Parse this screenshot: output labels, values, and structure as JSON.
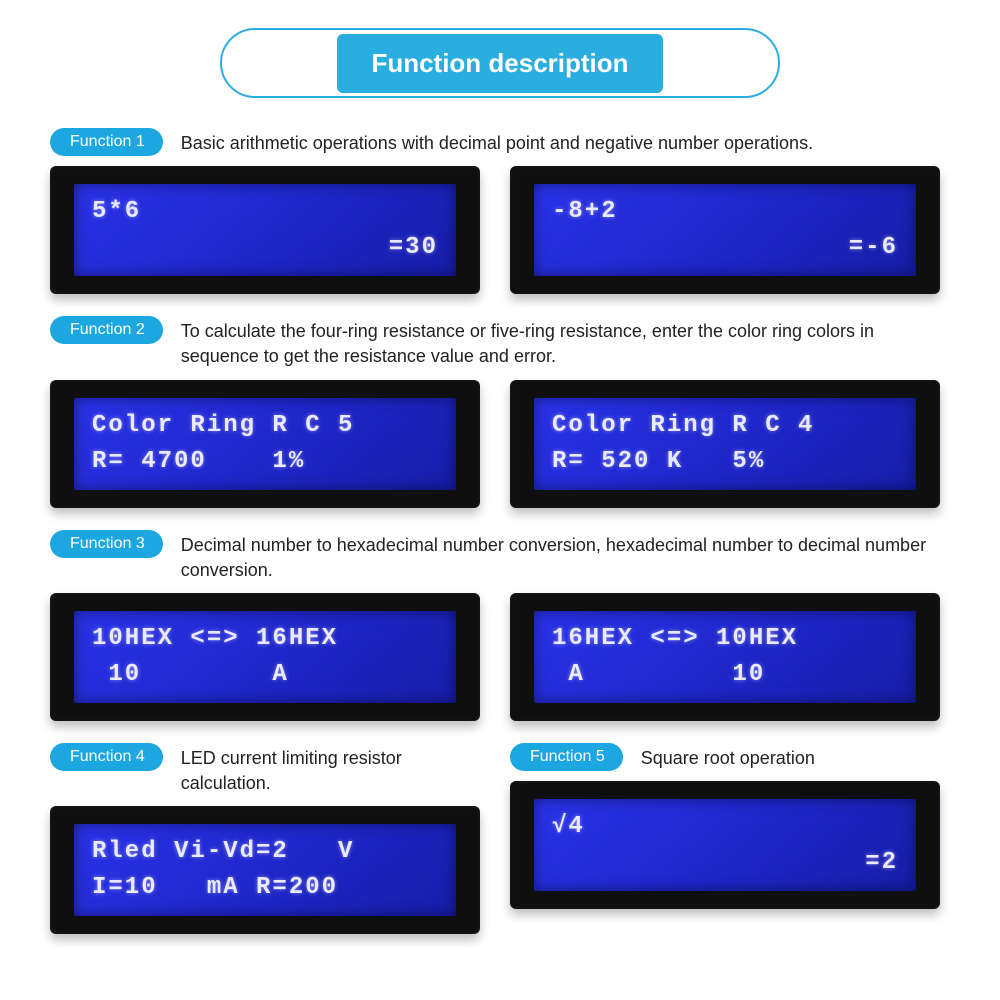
{
  "title": "Function description",
  "colors": {
    "accent": "#2aaee0",
    "lcd_bg_dark": "#0f0f0f",
    "lcd_screen_top": "#2a33e9",
    "lcd_screen_bottom": "#171da6",
    "lcd_text": "#e9e9ff",
    "body_text": "#222222"
  },
  "f1": {
    "tag": "Function 1",
    "desc": "Basic arithmetic operations with decimal point and negative number operations.",
    "lcdA": {
      "line1": "5*6",
      "line2": "=30"
    },
    "lcdB": {
      "line1": "-8+2",
      "line2": "=-6"
    }
  },
  "f2": {
    "tag": "Function 2",
    "desc": "To calculate the four-ring resistance or five-ring resistance, enter the color ring colors in sequence to get the resistance value and error.",
    "lcdA": {
      "line1": "Color Ring R C 5",
      "line2": "R= 4700    1%"
    },
    "lcdB": {
      "line1": "Color Ring R C 4",
      "line2": "R= 520 K   5%"
    }
  },
  "f3": {
    "tag": "Function 3",
    "desc": "Decimal number to hexadecimal number conversion, hexadecimal number to decimal number conversion.",
    "lcdA": {
      "line1": "10HEX <=> 16HEX",
      "line2": " 10        A"
    },
    "lcdB": {
      "line1": "16HEX <=> 10HEX",
      "line2": " A         10"
    }
  },
  "f4": {
    "tag": "Function 4",
    "desc": "LED current limiting resistor calculation.",
    "lcd": {
      "line1": "Rled Vi-Vd=2   V",
      "line2": "I=10   mA R=200"
    }
  },
  "f5": {
    "tag": "Function 5",
    "desc": "Square root operation",
    "lcd": {
      "line1": "√4",
      "line2": "=2"
    }
  }
}
